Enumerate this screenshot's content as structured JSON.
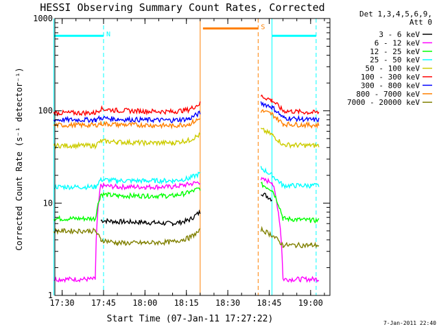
{
  "chart_data": {
    "type": "line",
    "title": "HESSI Observing Summary Count Rates, Corrected",
    "xlabel": "Start Time (07-Jan-11 17:27:22)",
    "ylabel": "Corrected Count Rate (s⁻¹ detector⁻¹)",
    "y_scale": "log",
    "ylim": [
      1,
      1000
    ],
    "xlim": [
      "17:27:22",
      "19:07:00"
    ],
    "x_ticks": [
      "17:30",
      "17:45",
      "18:00",
      "18:15",
      "18:30",
      "18:45",
      "19:00"
    ],
    "y_ticks": [
      "1",
      "10",
      "100",
      "1000"
    ],
    "legend": {
      "position": "right",
      "header": [
        "Det 1,3,4,5,6,9,",
        "Att 0"
      ]
    },
    "series": [
      {
        "name": "3 - 6 keV",
        "color": "#000000",
        "x": [
          "17:27",
          "17:42",
          "17:44",
          "17:50",
          "18:00",
          "18:10",
          "18:16",
          "18:20",
          "18:42",
          "18:46",
          "18:50",
          "19:00",
          "19:03"
        ],
        "y": [
          null,
          null,
          6.5,
          6.3,
          6.2,
          6.0,
          6.5,
          8.0,
          13.0,
          11.0,
          null,
          null,
          null
        ]
      },
      {
        "name": "6 - 12 keV",
        "color": "#ff00ff",
        "x": [
          "17:27",
          "17:42",
          "17:44",
          "17:50",
          "18:00",
          "18:10",
          "18:16",
          "18:20",
          "18:42",
          "18:46",
          "18:50",
          "19:00",
          "19:03"
        ],
        "y": [
          1.5,
          1.5,
          15.5,
          15.0,
          15.0,
          15.0,
          16.0,
          17.0,
          18.0,
          17.0,
          1.5,
          1.5,
          1.5
        ]
      },
      {
        "name": "12 - 25 keV",
        "color": "#00ff00",
        "x": [
          "17:27",
          "17:42",
          "17:44",
          "17:50",
          "18:00",
          "18:10",
          "18:16",
          "18:20",
          "18:42",
          "18:46",
          "18:50",
          "19:00",
          "19:03"
        ],
        "y": [
          6.8,
          6.8,
          12.5,
          12.0,
          12.0,
          12.0,
          13.0,
          14.5,
          16.0,
          14.0,
          6.8,
          6.5,
          6.5
        ]
      },
      {
        "name": "25 - 50 keV",
        "color": "#00ffff",
        "x": [
          "17:27",
          "17:42",
          "17:44",
          "17:50",
          "18:00",
          "18:10",
          "18:16",
          "18:20",
          "18:42",
          "18:46",
          "18:50",
          "19:00",
          "19:03"
        ],
        "y": [
          15.0,
          15.0,
          18.0,
          17.5,
          17.5,
          17.5,
          18.5,
          21.0,
          24.0,
          20.0,
          15.5,
          15.5,
          15.5
        ]
      },
      {
        "name": "50 - 100 keV",
        "color": "#cccc00",
        "x": [
          "17:27",
          "17:42",
          "17:44",
          "17:50",
          "18:00",
          "18:10",
          "18:16",
          "18:20",
          "18:42",
          "18:46",
          "18:50",
          "19:00",
          "19:03"
        ],
        "y": [
          42,
          42,
          47,
          46,
          45,
          45,
          48,
          55,
          63,
          55,
          43,
          42,
          42
        ]
      },
      {
        "name": "100 - 300 keV",
        "color": "#ff0000",
        "x": [
          "17:27",
          "17:42",
          "17:44",
          "17:50",
          "18:00",
          "18:10",
          "18:16",
          "18:20",
          "18:42",
          "18:46",
          "18:50",
          "19:00",
          "19:03"
        ],
        "y": [
          95,
          95,
          105,
          101,
          99,
          98,
          103,
          120,
          145,
          130,
          100,
          96,
          96
        ]
      },
      {
        "name": "300 - 800 keV",
        "color": "#0000ff",
        "x": [
          "17:27",
          "17:42",
          "17:44",
          "17:50",
          "18:00",
          "18:10",
          "18:16",
          "18:20",
          "18:42",
          "18:46",
          "18:50",
          "19:00",
          "19:03"
        ],
        "y": [
          80,
          80,
          84,
          81,
          80,
          79,
          82,
          95,
          122,
          110,
          84,
          80,
          80
        ]
      },
      {
        "name": "800 - 7000 keV",
        "color": "#ff8000",
        "x": [
          "17:27",
          "17:42",
          "17:44",
          "17:50",
          "18:00",
          "18:10",
          "18:16",
          "18:20",
          "18:42",
          "18:46",
          "18:50",
          "19:00",
          "19:03"
        ],
        "y": [
          70,
          70,
          73,
          71,
          70,
          69,
          72,
          82,
          100,
          92,
          72,
          70,
          70
        ]
      },
      {
        "name": "7000 - 20000 keV",
        "color": "#808000",
        "x": [
          "17:27",
          "17:42",
          "17:44",
          "17:50",
          "18:00",
          "18:10",
          "18:16",
          "18:20",
          "18:42",
          "18:46",
          "18:50",
          "19:00",
          "19:03"
        ],
        "y": [
          5.0,
          5.0,
          4.0,
          3.7,
          3.7,
          3.8,
          4.2,
          5.0,
          5.2,
          4.5,
          3.5,
          3.5,
          3.5
        ]
      }
    ],
    "annotations": [
      {
        "label": "N",
        "color": "#00ffff",
        "x_start": "17:27",
        "x_end": "17:45",
        "y": 650
      },
      {
        "label": "",
        "color": "#00ffff",
        "x_start": "18:46",
        "x_end": "19:02",
        "y": 650
      },
      {
        "label": "S",
        "color": "#ff8000",
        "x_start": "18:21",
        "x_end": "18:41",
        "y": 780
      }
    ],
    "footer": "7-Jan-2011 22:40"
  }
}
